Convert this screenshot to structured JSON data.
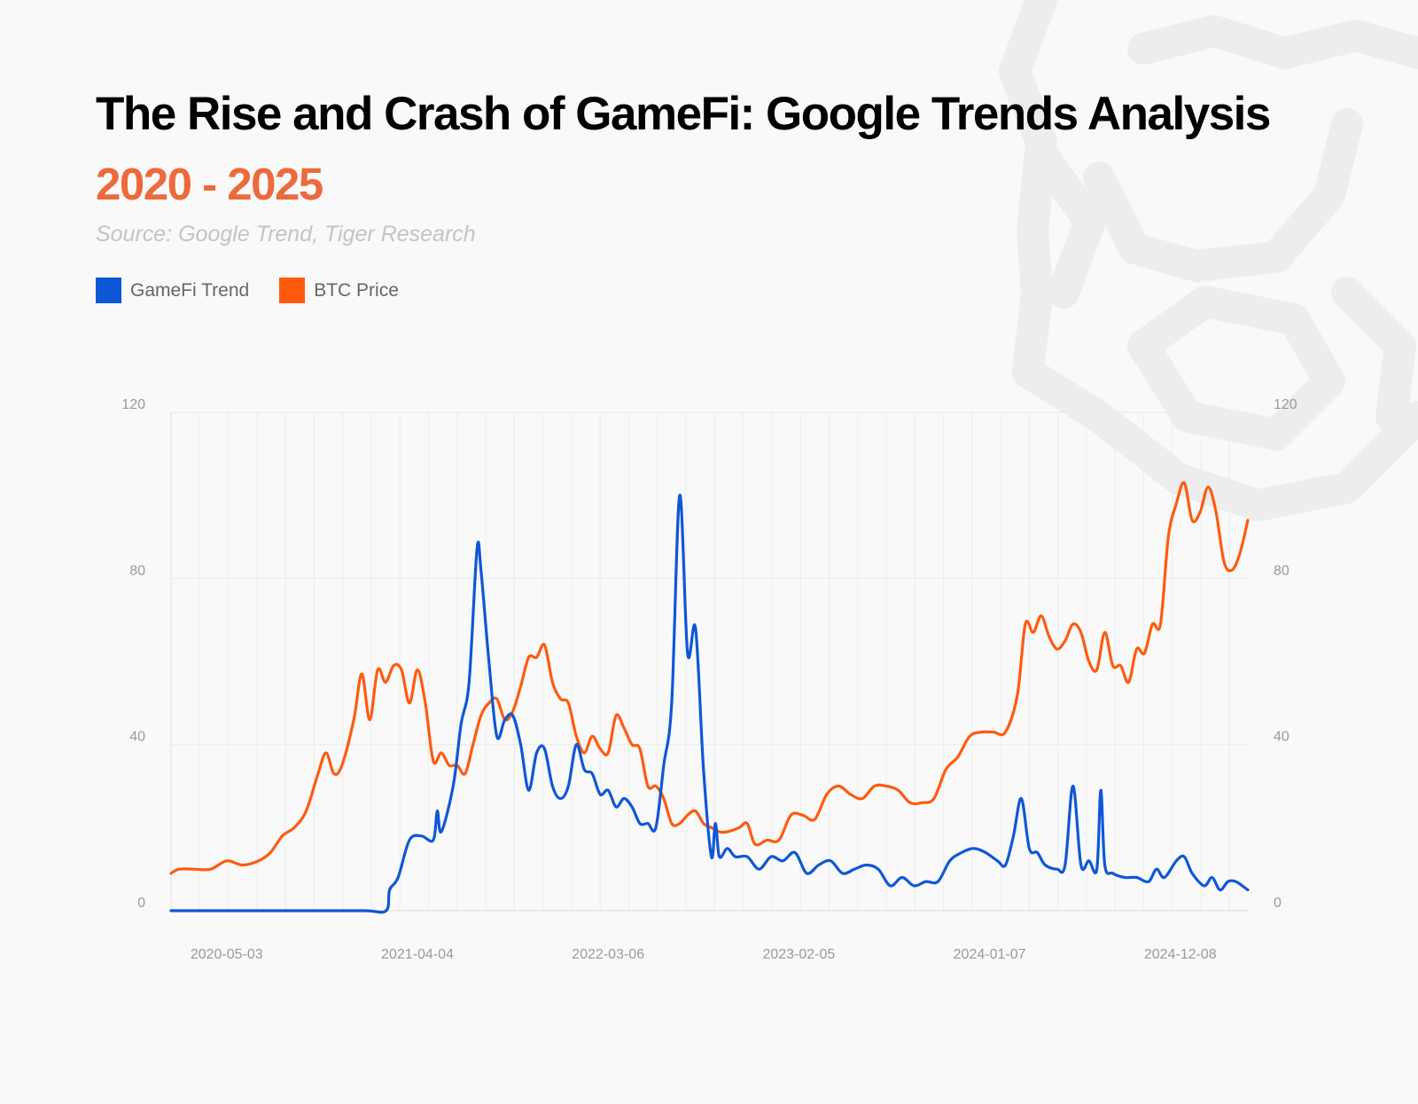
{
  "header": {
    "title": "The Rise and Crash of GameFi: Google Trends Analysis",
    "subtitle": "2020 - 2025",
    "source": "Source: Google Trend, Tiger Research"
  },
  "legend": {
    "items": [
      {
        "label": "GameFi Trend",
        "color": "#0f57d6"
      },
      {
        "label": "BTC Price",
        "color": "#ff5a0f"
      }
    ]
  },
  "chart_data": {
    "type": "line",
    "x_axis": {
      "tick_labels": [
        "2020-05-03",
        "2021-04-04",
        "2022-03-06",
        "2023-02-05",
        "2024-01-07",
        "2024-12-08"
      ],
      "range": [
        "2020-01-26",
        "2025-04-06"
      ]
    },
    "y_axis_left": {
      "range": [
        0,
        120
      ],
      "ticks": [
        0,
        40,
        80,
        120
      ]
    },
    "y_axis_right": {
      "range": [
        0,
        120
      ],
      "ticks": [
        0,
        40,
        80,
        120
      ]
    },
    "grid": true,
    "legend_placement": "top-left",
    "series": [
      {
        "name": "GameFi Trend",
        "color": "#0f57d6",
        "points": [
          [
            "2020-01-26",
            0
          ],
          [
            "2020-06-01",
            0
          ],
          [
            "2020-10-01",
            0
          ],
          [
            "2021-01-01",
            0
          ],
          [
            "2021-02-08",
            0
          ],
          [
            "2021-02-14",
            5
          ],
          [
            "2021-03-01",
            8
          ],
          [
            "2021-03-21",
            17
          ],
          [
            "2021-04-11",
            18
          ],
          [
            "2021-05-02",
            17
          ],
          [
            "2021-05-09",
            24
          ],
          [
            "2021-05-16",
            19
          ],
          [
            "2021-06-06",
            30
          ],
          [
            "2021-06-20",
            45
          ],
          [
            "2021-07-04",
            55
          ],
          [
            "2021-07-18",
            87
          ],
          [
            "2021-07-25",
            82
          ],
          [
            "2021-08-08",
            60
          ],
          [
            "2021-08-22",
            42
          ],
          [
            "2021-09-05",
            46
          ],
          [
            "2021-09-19",
            47
          ],
          [
            "2021-10-03",
            40
          ],
          [
            "2021-10-17",
            29
          ],
          [
            "2021-10-31",
            38
          ],
          [
            "2021-11-14",
            39
          ],
          [
            "2021-11-28",
            30
          ],
          [
            "2021-12-12",
            27
          ],
          [
            "2021-12-26",
            30
          ],
          [
            "2022-01-09",
            40
          ],
          [
            "2022-01-23",
            34
          ],
          [
            "2022-02-06",
            33
          ],
          [
            "2022-02-20",
            28
          ],
          [
            "2022-03-06",
            29
          ],
          [
            "2022-03-20",
            25
          ],
          [
            "2022-04-03",
            27
          ],
          [
            "2022-04-17",
            25
          ],
          [
            "2022-05-01",
            21
          ],
          [
            "2022-05-15",
            21
          ],
          [
            "2022-05-29",
            20
          ],
          [
            "2022-06-12",
            35
          ],
          [
            "2022-06-26",
            50
          ],
          [
            "2022-07-10",
            100
          ],
          [
            "2022-07-24",
            62
          ],
          [
            "2022-08-07",
            68
          ],
          [
            "2022-08-21",
            34
          ],
          [
            "2022-09-04",
            13
          ],
          [
            "2022-09-11",
            21
          ],
          [
            "2022-09-18",
            13
          ],
          [
            "2022-10-02",
            15
          ],
          [
            "2022-10-16",
            13
          ],
          [
            "2022-11-06",
            13
          ],
          [
            "2022-11-27",
            10
          ],
          [
            "2022-12-18",
            13
          ],
          [
            "2023-01-08",
            12
          ],
          [
            "2023-01-29",
            14
          ],
          [
            "2023-02-19",
            9
          ],
          [
            "2023-03-12",
            11
          ],
          [
            "2023-04-02",
            12
          ],
          [
            "2023-04-23",
            9
          ],
          [
            "2023-05-14",
            10
          ],
          [
            "2023-06-04",
            11
          ],
          [
            "2023-06-25",
            10
          ],
          [
            "2023-07-16",
            6
          ],
          [
            "2023-08-06",
            8
          ],
          [
            "2023-08-27",
            6
          ],
          [
            "2023-09-17",
            7
          ],
          [
            "2023-10-08",
            7
          ],
          [
            "2023-10-29",
            12
          ],
          [
            "2023-11-19",
            14
          ],
          [
            "2023-12-10",
            15
          ],
          [
            "2023-12-31",
            14
          ],
          [
            "2024-01-21",
            12
          ],
          [
            "2024-02-04",
            11
          ],
          [
            "2024-02-18",
            18
          ],
          [
            "2024-03-03",
            27
          ],
          [
            "2024-03-17",
            15
          ],
          [
            "2024-03-31",
            14
          ],
          [
            "2024-04-14",
            11
          ],
          [
            "2024-05-05",
            10
          ],
          [
            "2024-05-19",
            11
          ],
          [
            "2024-06-02",
            30
          ],
          [
            "2024-06-16",
            11
          ],
          [
            "2024-06-30",
            12
          ],
          [
            "2024-07-14",
            10
          ],
          [
            "2024-07-21",
            29
          ],
          [
            "2024-07-28",
            11
          ],
          [
            "2024-08-11",
            9
          ],
          [
            "2024-09-01",
            8
          ],
          [
            "2024-09-22",
            8
          ],
          [
            "2024-10-13",
            7
          ],
          [
            "2024-10-27",
            10
          ],
          [
            "2024-11-10",
            8
          ],
          [
            "2024-12-01",
            12
          ],
          [
            "2024-12-15",
            13
          ],
          [
            "2024-12-29",
            9
          ],
          [
            "2025-01-19",
            6
          ],
          [
            "2025-02-02",
            8
          ],
          [
            "2025-02-16",
            5
          ],
          [
            "2025-03-02",
            7
          ],
          [
            "2025-03-16",
            7
          ],
          [
            "2025-04-06",
            5
          ]
        ]
      },
      {
        "name": "BTC Price",
        "color": "#ff5a0f",
        "points": [
          [
            "2020-01-26",
            9
          ],
          [
            "2020-02-09",
            10
          ],
          [
            "2020-03-08",
            10
          ],
          [
            "2020-04-05",
            10
          ],
          [
            "2020-05-03",
            12
          ],
          [
            "2020-05-31",
            11
          ],
          [
            "2020-06-28",
            12
          ],
          [
            "2020-07-19",
            14
          ],
          [
            "2020-08-09",
            18
          ],
          [
            "2020-08-30",
            20
          ],
          [
            "2020-09-20",
            24
          ],
          [
            "2020-10-11",
            33
          ],
          [
            "2020-10-25",
            38
          ],
          [
            "2020-11-08",
            33
          ],
          [
            "2020-11-22",
            35
          ],
          [
            "2020-12-13",
            46
          ],
          [
            "2020-12-27",
            57
          ],
          [
            "2021-01-10",
            46
          ],
          [
            "2021-01-24",
            58
          ],
          [
            "2021-02-07",
            55
          ],
          [
            "2021-02-21",
            59
          ],
          [
            "2021-03-07",
            58
          ],
          [
            "2021-03-21",
            50
          ],
          [
            "2021-04-04",
            58
          ],
          [
            "2021-04-18",
            50
          ],
          [
            "2021-05-02",
            36
          ],
          [
            "2021-05-16",
            38
          ],
          [
            "2021-05-30",
            35
          ],
          [
            "2021-06-13",
            35
          ],
          [
            "2021-06-27",
            33
          ],
          [
            "2021-07-11",
            40
          ],
          [
            "2021-07-25",
            47
          ],
          [
            "2021-08-08",
            50
          ],
          [
            "2021-08-22",
            51
          ],
          [
            "2021-09-05",
            46
          ],
          [
            "2021-09-19",
            48
          ],
          [
            "2021-10-03",
            54
          ],
          [
            "2021-10-17",
            61
          ],
          [
            "2021-10-31",
            61
          ],
          [
            "2021-11-14",
            64
          ],
          [
            "2021-11-28",
            55
          ],
          [
            "2021-12-12",
            51
          ],
          [
            "2021-12-26",
            50
          ],
          [
            "2022-01-09",
            42
          ],
          [
            "2022-01-23",
            38
          ],
          [
            "2022-02-06",
            42
          ],
          [
            "2022-02-20",
            39
          ],
          [
            "2022-03-06",
            38
          ],
          [
            "2022-03-20",
            47
          ],
          [
            "2022-04-03",
            44
          ],
          [
            "2022-04-17",
            40
          ],
          [
            "2022-05-01",
            39
          ],
          [
            "2022-05-15",
            30
          ],
          [
            "2022-05-29",
            30
          ],
          [
            "2022-06-12",
            27
          ],
          [
            "2022-06-26",
            21
          ],
          [
            "2022-07-10",
            21
          ],
          [
            "2022-07-24",
            23
          ],
          [
            "2022-08-07",
            24
          ],
          [
            "2022-08-21",
            21
          ],
          [
            "2022-09-04",
            20
          ],
          [
            "2022-09-18",
            19
          ],
          [
            "2022-10-02",
            19
          ],
          [
            "2022-10-23",
            20
          ],
          [
            "2022-11-06",
            21
          ],
          [
            "2022-11-20",
            16
          ],
          [
            "2022-12-11",
            17
          ],
          [
            "2023-01-01",
            17
          ],
          [
            "2023-01-22",
            23
          ],
          [
            "2023-02-12",
            23
          ],
          [
            "2023-03-05",
            22
          ],
          [
            "2023-03-26",
            28
          ],
          [
            "2023-04-16",
            30
          ],
          [
            "2023-05-07",
            28
          ],
          [
            "2023-05-28",
            27
          ],
          [
            "2023-06-18",
            30
          ],
          [
            "2023-07-09",
            30
          ],
          [
            "2023-07-30",
            29
          ],
          [
            "2023-08-20",
            26
          ],
          [
            "2023-09-10",
            26
          ],
          [
            "2023-10-01",
            27
          ],
          [
            "2023-10-22",
            34
          ],
          [
            "2023-11-12",
            37
          ],
          [
            "2023-12-03",
            42
          ],
          [
            "2023-12-24",
            43
          ],
          [
            "2024-01-14",
            43
          ],
          [
            "2024-02-04",
            43
          ],
          [
            "2024-02-25",
            52
          ],
          [
            "2024-03-10",
            69
          ],
          [
            "2024-03-24",
            67
          ],
          [
            "2024-04-07",
            71
          ],
          [
            "2024-04-21",
            66
          ],
          [
            "2024-05-05",
            63
          ],
          [
            "2024-05-19",
            65
          ],
          [
            "2024-06-02",
            69
          ],
          [
            "2024-06-16",
            67
          ],
          [
            "2024-06-30",
            60
          ],
          [
            "2024-07-14",
            58
          ],
          [
            "2024-07-28",
            67
          ],
          [
            "2024-08-11",
            59
          ],
          [
            "2024-08-25",
            59
          ],
          [
            "2024-09-08",
            55
          ],
          [
            "2024-09-22",
            63
          ],
          [
            "2024-10-06",
            62
          ],
          [
            "2024-10-20",
            69
          ],
          [
            "2024-11-03",
            69
          ],
          [
            "2024-11-17",
            90
          ],
          [
            "2024-12-01",
            98
          ],
          [
            "2024-12-15",
            103
          ],
          [
            "2024-12-29",
            94
          ],
          [
            "2025-01-12",
            96
          ],
          [
            "2025-01-26",
            102
          ],
          [
            "2025-02-09",
            96
          ],
          [
            "2025-02-23",
            84
          ],
          [
            "2025-03-09",
            82
          ],
          [
            "2025-03-23",
            86
          ],
          [
            "2025-04-06",
            94
          ]
        ]
      }
    ]
  }
}
